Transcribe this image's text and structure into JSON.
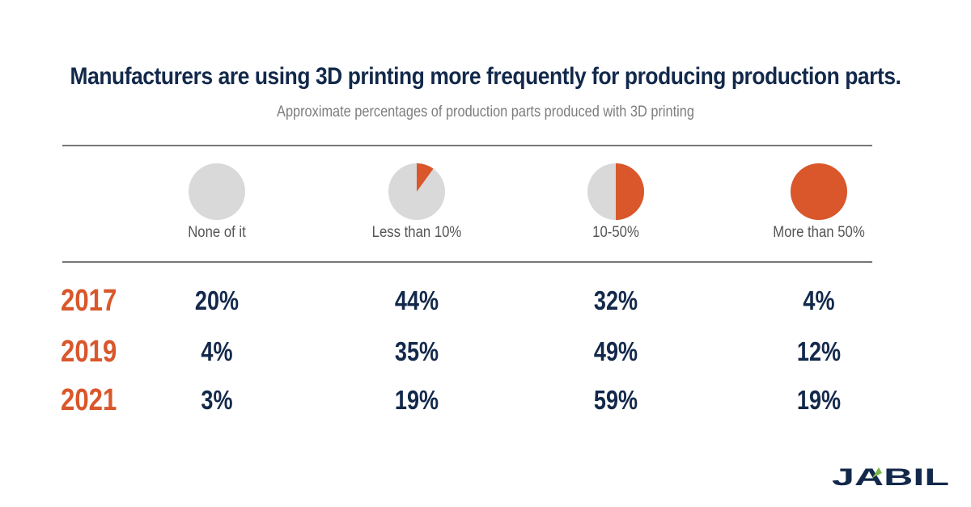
{
  "chart_data": {
    "type": "table",
    "title": "Manufacturers are using 3D printing more frequently for producing production parts.",
    "subtitle": "Approximate percentages of production parts produced with 3D printing",
    "columns": [
      {
        "label": "None of it",
        "pie_fraction": 0.0
      },
      {
        "label": "Less than 10%",
        "pie_fraction": 0.1
      },
      {
        "label": "10-50%",
        "pie_fraction": 0.5
      },
      {
        "label": "More than 50%",
        "pie_fraction": 1.0
      }
    ],
    "rows": [
      {
        "year": "2017",
        "values": [
          "20%",
          "44%",
          "32%",
          "4%"
        ]
      },
      {
        "year": "2019",
        "values": [
          "4%",
          "35%",
          "49%",
          "12%"
        ]
      },
      {
        "year": "2021",
        "values": [
          "3%",
          "19%",
          "59%",
          "19%"
        ]
      }
    ]
  },
  "colors": {
    "accent": "#d9572b",
    "navy": "#13294b",
    "pie_base": "#d9d9d9",
    "logo_green": "#7ab648"
  },
  "brand": {
    "logo_text": "JABIL"
  }
}
